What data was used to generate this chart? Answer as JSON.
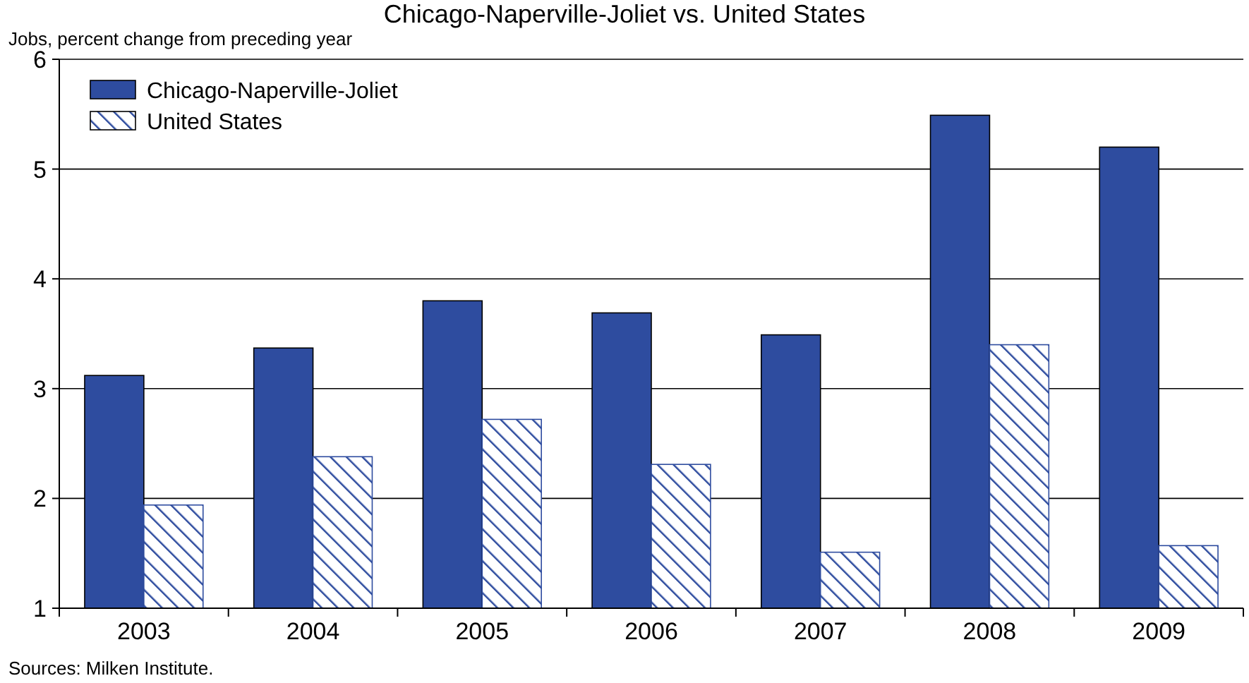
{
  "chart_data": {
    "type": "bar",
    "title": "Chicago-Naperville-Joliet vs. United States",
    "ylabel": "Jobs, percent change from preceding year",
    "categories": [
      "2003",
      "2004",
      "2005",
      "2006",
      "2007",
      "2008",
      "2009"
    ],
    "series": [
      {
        "name": "Chicago-Naperville-Joliet",
        "color": "#2e4c9f",
        "values": [
          3.12,
          3.37,
          3.8,
          3.69,
          3.49,
          5.49,
          5.2
        ]
      },
      {
        "name": "United States",
        "color": "#2e4c9f",
        "values": [
          1.94,
          2.38,
          2.72,
          2.31,
          1.51,
          3.4,
          1.57
        ]
      }
    ],
    "ylim": [
      1,
      6
    ],
    "yticks": [
      1,
      2,
      3,
      4,
      5,
      6
    ],
    "grid": "y",
    "legend": "top left",
    "annotations": [
      "Sources: Milken Institute."
    ]
  }
}
